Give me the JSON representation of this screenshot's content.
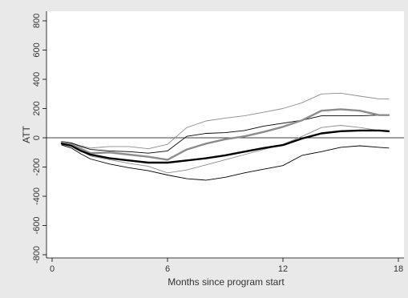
{
  "chart_data": {
    "type": "line",
    "xlabel": "Months since program start",
    "ylabel": "ATT",
    "xlim": [
      0,
      18
    ],
    "ylim": [
      -800,
      800
    ],
    "xticks": [
      0,
      6,
      12,
      18
    ],
    "yticks": [
      -800,
      -600,
      -400,
      -200,
      0,
      200,
      400,
      600,
      800
    ],
    "reference_line": 0,
    "grid": false,
    "legend": "none",
    "series": [
      {
        "style": "thick-black",
        "x": [
          0.5,
          1,
          1.5,
          2,
          3,
          4,
          5,
          6,
          7,
          8,
          9,
          10,
          11,
          12,
          13,
          14,
          15,
          16,
          17,
          17.5
        ],
        "y": [
          -40,
          -55,
          -90,
          -115,
          -140,
          -155,
          -170,
          -170,
          -155,
          -140,
          -120,
          -95,
          -70,
          -50,
          -5,
          30,
          45,
          50,
          50,
          45
        ]
      },
      {
        "style": "thin-black-upper",
        "x": [
          0.5,
          1,
          1.5,
          2,
          3,
          4,
          5,
          6,
          7,
          8,
          9,
          10,
          11,
          12,
          13,
          14,
          15,
          16,
          17,
          17.5
        ],
        "y": [
          -25,
          -35,
          -60,
          -80,
          -90,
          -95,
          -105,
          -90,
          10,
          30,
          35,
          50,
          80,
          100,
          120,
          150,
          150,
          150,
          155,
          155
        ]
      },
      {
        "style": "thin-black-lower",
        "x": [
          0.5,
          1,
          1.5,
          2,
          3,
          4,
          5,
          6,
          7,
          8,
          9,
          10,
          11,
          12,
          13,
          14,
          15,
          16,
          17,
          17.5
        ],
        "y": [
          -50,
          -70,
          -110,
          -145,
          -180,
          -205,
          -225,
          -255,
          -280,
          -290,
          -270,
          -240,
          -215,
          -190,
          -120,
          -95,
          -65,
          -55,
          -65,
          -70
        ]
      },
      {
        "style": "thick-gray",
        "x": [
          0.5,
          1,
          1.5,
          2,
          3,
          4,
          5,
          6,
          7,
          8,
          9,
          10,
          11,
          12,
          13,
          14,
          15,
          16,
          17,
          17.5
        ],
        "y": [
          -30,
          -45,
          -75,
          -105,
          -100,
          -115,
          -130,
          -150,
          -80,
          -40,
          -10,
          10,
          40,
          75,
          120,
          185,
          195,
          185,
          155,
          155
        ]
      },
      {
        "style": "thin-gray-upper",
        "x": [
          0.5,
          1,
          1.5,
          2,
          3,
          4,
          5,
          6,
          7,
          8,
          9,
          10,
          11,
          12,
          13,
          14,
          15,
          16,
          17,
          17.5
        ],
        "y": [
          -25,
          -35,
          -55,
          -70,
          -60,
          -60,
          -75,
          -45,
          70,
          115,
          135,
          150,
          175,
          200,
          240,
          300,
          305,
          285,
          265,
          265
        ]
      },
      {
        "style": "thin-gray-lower",
        "x": [
          0.5,
          1,
          1.5,
          2,
          3,
          4,
          5,
          6,
          7,
          8,
          9,
          10,
          11,
          12,
          13,
          14,
          15,
          16,
          17,
          17.5
        ],
        "y": [
          -35,
          -50,
          -90,
          -125,
          -150,
          -175,
          -195,
          -240,
          -220,
          -185,
          -150,
          -115,
          -80,
          -45,
          10,
          70,
          85,
          70,
          50,
          45
        ]
      }
    ]
  }
}
